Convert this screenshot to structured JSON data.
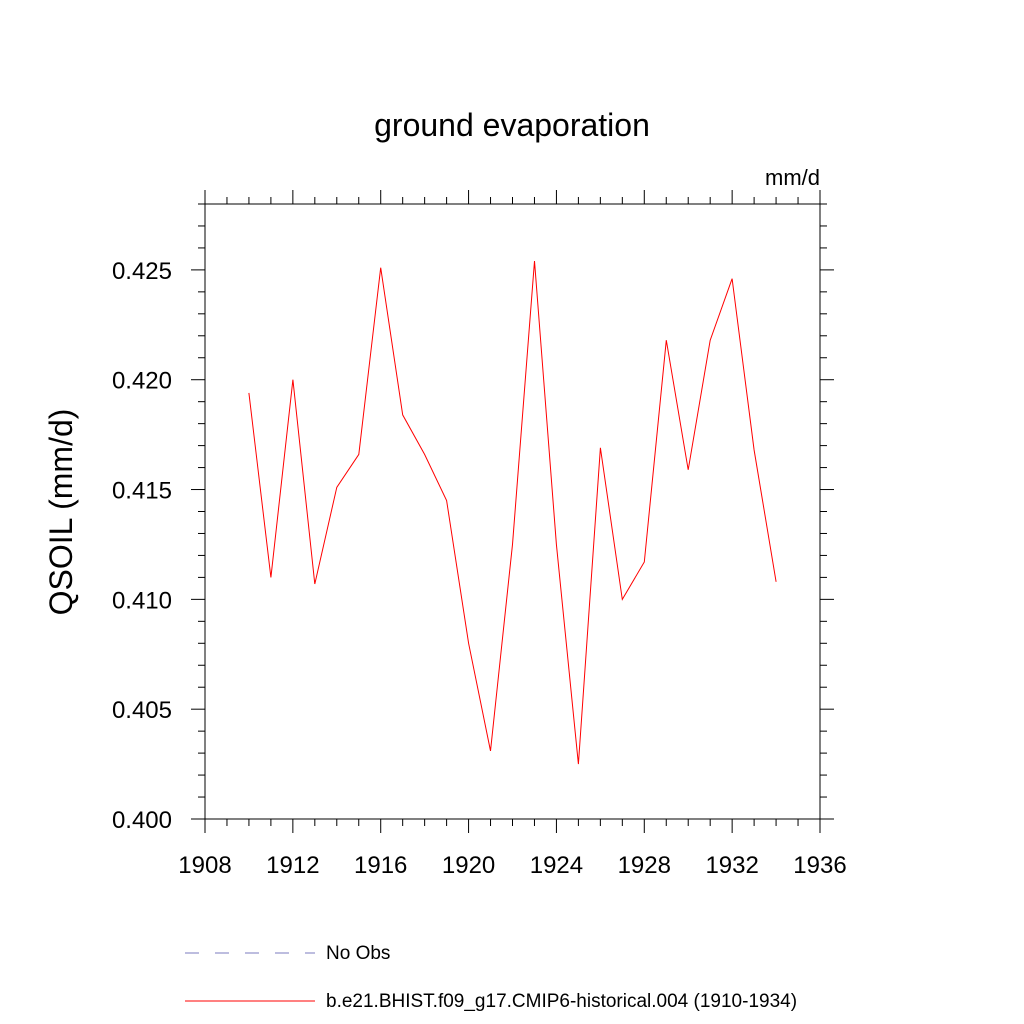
{
  "chart_data": {
    "type": "line",
    "title": "ground evaporation",
    "units_label": "mm/d",
    "ylabel": "QSOIL  (mm/d)",
    "xlabel": "",
    "xlim": [
      1908,
      1936
    ],
    "ylim": [
      0.4,
      0.428
    ],
    "x_ticks": [
      "1908",
      "1912",
      "1916",
      "1920",
      "1924",
      "1928",
      "1932",
      "1936"
    ],
    "y_ticks": [
      "0.400",
      "0.405",
      "0.410",
      "0.415",
      "0.420",
      "0.425"
    ],
    "series": [
      {
        "name": "b.e21.BHIST.f09_g17.CMIP6-historical.004 (1910-1934)",
        "color": "#ff0000",
        "x": [
          1910,
          1911,
          1912,
          1913,
          1914,
          1915,
          1916,
          1917,
          1918,
          1919,
          1920,
          1921,
          1922,
          1923,
          1924,
          1925,
          1926,
          1927,
          1928,
          1929,
          1930,
          1931,
          1932,
          1933,
          1934
        ],
        "y": [
          0.4194,
          0.411,
          0.42,
          0.4107,
          0.4151,
          0.4166,
          0.4251,
          0.4184,
          0.4166,
          0.4145,
          0.408,
          0.4031,
          0.4125,
          0.4254,
          0.4125,
          0.4025,
          0.4169,
          0.41,
          0.4117,
          0.4218,
          0.4159,
          0.4218,
          0.4246,
          0.4168,
          0.4108
        ]
      }
    ],
    "legend": [
      {
        "label": "No Obs",
        "color": "#7b7bbf",
        "style": "dashed"
      },
      {
        "label": "b.e21.BHIST.f09_g17.CMIP6-historical.004 (1910-1934)",
        "color": "#ff0000",
        "style": "solid"
      }
    ],
    "legend_position": "bottom",
    "grid": false
  }
}
